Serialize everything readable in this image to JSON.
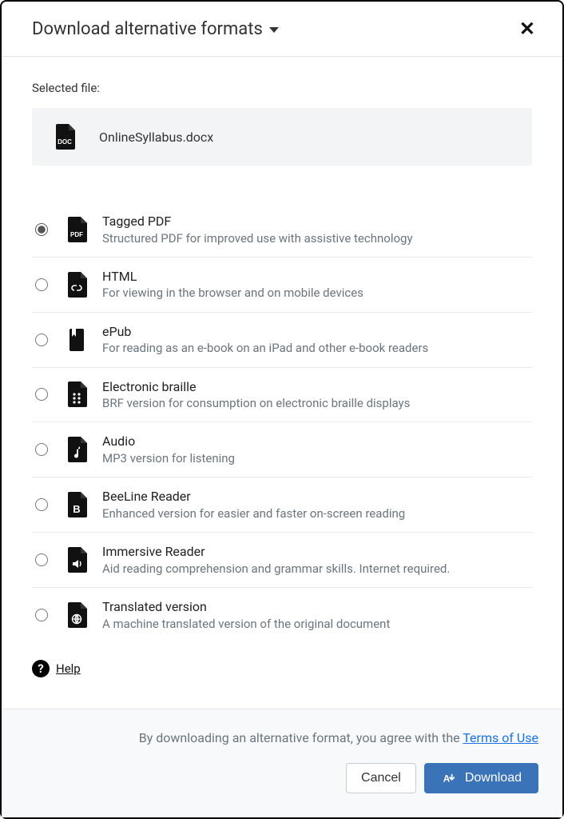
{
  "colors": {
    "icon": "#111111",
    "text": "#333333",
    "muted": "#6c757d",
    "divider": "#e8e9eb",
    "filebox_bg": "#f3f4f6",
    "footer_bg": "#f8f9fa",
    "primary": "#3b73b9",
    "link": "#1a73e8"
  },
  "header": {
    "title": "Download alternative formats"
  },
  "selected": {
    "label": "Selected file:",
    "filename": "OnlineSyllabus.docx"
  },
  "formats": [
    {
      "id": "pdf",
      "title": "Tagged PDF",
      "desc": "Structured PDF for improved use with assistive technology",
      "selected": true
    },
    {
      "id": "html",
      "title": "HTML",
      "desc": "For viewing in the browser and on mobile devices",
      "selected": false
    },
    {
      "id": "epub",
      "title": "ePub",
      "desc": "For reading as an e-book on an iPad and other e-book readers",
      "selected": false
    },
    {
      "id": "brf",
      "title": "Electronic braille",
      "desc": "BRF version for consumption on electronic braille displays",
      "selected": false
    },
    {
      "id": "audio",
      "title": "Audio",
      "desc": "MP3 version for listening",
      "selected": false
    },
    {
      "id": "beeline",
      "title": "BeeLine Reader",
      "desc": "Enhanced version for easier and faster on-screen reading",
      "selected": false
    },
    {
      "id": "immersive",
      "title": "Immersive Reader",
      "desc": "Aid reading comprehension and grammar skills. Internet required.",
      "selected": false
    },
    {
      "id": "translated",
      "title": "Translated version",
      "desc": "A machine translated version of the original document",
      "selected": false
    }
  ],
  "help": {
    "label": "Help"
  },
  "footer": {
    "terms_prefix": "By downloading an alternative format, you agree with the ",
    "terms_link": "Terms of Use",
    "cancel": "Cancel",
    "download": "Download"
  }
}
